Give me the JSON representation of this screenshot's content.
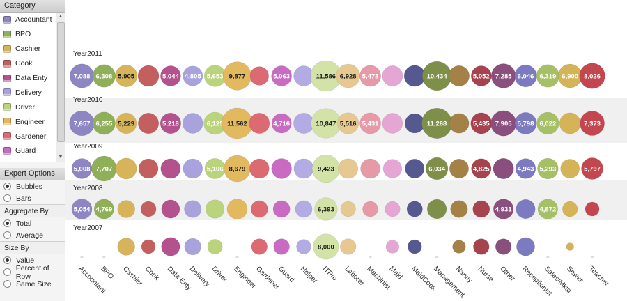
{
  "sidebar": {
    "category_title": "Category",
    "category_items": [
      "Accountant",
      "BPO",
      "Cashier",
      "Cook",
      "Data Enty",
      "Delivery",
      "Driver",
      "Engineer",
      "Gardener",
      "Guard"
    ],
    "expert_title": "Expert Options",
    "chart_type_options": [
      {
        "label": "Bubbles",
        "selected": true
      },
      {
        "label": "Bars",
        "selected": false
      }
    ],
    "aggregate_title": "Aggregate By",
    "aggregate_options": [
      {
        "label": "Total",
        "selected": true
      },
      {
        "label": "Average",
        "selected": false
      }
    ],
    "size_title": "Size By",
    "size_options": [
      {
        "label": "Value",
        "selected": true
      },
      {
        "label": "Percent of Row",
        "selected": false
      },
      {
        "label": "Same Size",
        "selected": false
      }
    ]
  },
  "chart_data": {
    "type": "scatter",
    "categories": [
      "Accountant",
      "BPO",
      "Cashier",
      "Cook",
      "Data Enty",
      "Delivery",
      "Driver",
      "Engineer",
      "Gardener",
      "Guard",
      "Helper",
      "ITPro",
      "Laborer",
      "Machinist",
      "Maid",
      "MaidCook",
      "Management",
      "Nanny",
      "Nurse",
      "Other",
      "Receptionist",
      "Sales/Mktg",
      "Sewer",
      "Teacher"
    ],
    "colors": [
      "#8e86c3",
      "#8faf59",
      "#d7b45a",
      "#c35f5e",
      "#b4528e",
      "#a9a3dd",
      "#b9d47b",
      "#e3b960",
      "#dc6a73",
      "#c96bc2",
      "#b3abe3",
      "#d3e3a7",
      "#e6c890",
      "#e69aa7",
      "#e6a6d3",
      "#565890",
      "#7e8f49",
      "#a48146",
      "#a6434f",
      "#8a4f7c",
      "#7c7ac0",
      "#a6c066",
      "#d4b456",
      "#c4474f"
    ],
    "series": [
      {
        "name": "Year2011",
        "values": [
          7088,
          6308,
          5905,
          5400,
          5044,
          4805,
          5653,
          9877,
          4300,
          5063,
          5000,
          11586,
          6928,
          5478,
          5100,
          5500,
          10434,
          5200,
          5052,
          7285,
          6046,
          6319,
          6900,
          8026
        ],
        "labels": [
          "7,088",
          "6,308",
          "5,905",
          "",
          "5,044",
          "4,805",
          "5,653",
          "9,877",
          "",
          "5,063",
          "",
          "11,586",
          "6,928",
          "5,478",
          "",
          "",
          "10,434",
          "",
          "5,052",
          "7,285",
          "6,046",
          "6,319",
          "6,900",
          "8,026"
        ]
      },
      {
        "name": "Year2010",
        "values": [
          7657,
          6255,
          5229,
          5200,
          5218,
          5000,
          6125,
          11562,
          5100,
          4716,
          5100,
          10847,
          5516,
          5431,
          5000,
          4700,
          11268,
          4800,
          5435,
          7905,
          5798,
          6022,
          5400,
          7373
        ],
        "labels": [
          "7,657",
          "6,255",
          "5,229",
          "",
          "5,218",
          "",
          "6,125",
          "11,562",
          "",
          "4,716",
          "",
          "10,847",
          "5,516",
          "5,431",
          "",
          "",
          "11,268",
          "",
          "5,435",
          "7,905",
          "5,798",
          "6,022",
          "",
          "7,373"
        ]
      },
      {
        "name": "Year2009",
        "values": [
          5008,
          7707,
          5400,
          4700,
          4800,
          4700,
          5106,
          8679,
          4700,
          5000,
          4800,
          9423,
          4800,
          4700,
          4300,
          4500,
          6034,
          4500,
          4825,
          5200,
          4943,
          5293,
          4400,
          5797
        ],
        "labels": [
          "5,008",
          "7,707",
          "",
          "",
          "",
          "",
          "5,106",
          "8,679",
          "",
          "",
          "",
          "9,423",
          "",
          "",
          "",
          "",
          "6,034",
          "",
          "4,825",
          "",
          "4,943",
          "5,293",
          "",
          "5,797"
        ]
      },
      {
        "name": "Year2008",
        "values": [
          5054,
          4769,
          3700,
          2900,
          4100,
          3600,
          4200,
          5000,
          3500,
          3500,
          3500,
          6393,
          2800,
          2900,
          2800,
          3000,
          4600,
          3600,
          3500,
          4931,
          4500,
          4872,
          2800,
          2400
        ],
        "labels": [
          "5,054",
          "4,769",
          "",
          "",
          "",
          "",
          "",
          "",
          "",
          "",
          "",
          "6,393",
          "",
          "",
          "",
          "",
          "",
          "",
          "",
          "4,931",
          "",
          "4,872",
          "",
          ""
        ]
      },
      {
        "name": "Year2007",
        "values": [
          0,
          0,
          3700,
          2400,
          4200,
          3400,
          2700,
          0,
          3100,
          3100,
          2600,
          8000,
          3100,
          0,
          2100,
          2400,
          0,
          2100,
          3100,
          3100,
          4100,
          0,
          700,
          0
        ],
        "labels": [
          "",
          "",
          "",
          "",
          "",
          "",
          "",
          "",
          "",
          "",
          "",
          "8,000",
          "",
          "",
          "",
          "",
          "",
          "",
          "",
          "",
          "",
          "",
          "",
          ""
        ]
      }
    ],
    "y_categories": [
      "Year2011",
      "Year2010",
      "Year2009",
      "Year2008",
      "Year2007"
    ],
    "xlabel": "",
    "ylabel": "",
    "size_by": "Value",
    "legend": "left panel"
  }
}
